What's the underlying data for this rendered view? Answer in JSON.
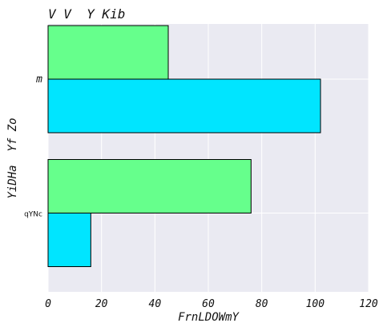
{
  "chart_data": {
    "type": "bar",
    "orientation": "horizontal",
    "title": "V V  Y Kib",
    "xlabel": "FrnLDOWmY",
    "ylabel": "YiDHa  Yf Zo",
    "categories": [
      "m",
      "qYNc"
    ],
    "series": [
      {
        "values": [
          45,
          76
        ],
        "color": "#66ff8c"
      },
      {
        "values": [
          102,
          16
        ],
        "color": "#00e5ff"
      }
    ],
    "xlim": [
      0,
      120
    ],
    "xticks": [
      "0",
      "20",
      "40",
      "60",
      "80",
      "100",
      "120"
    ],
    "grid": true,
    "plot_background": "#eaeaf2",
    "grid_color": "#ffffff",
    "bar_edge_color": "#000000"
  }
}
